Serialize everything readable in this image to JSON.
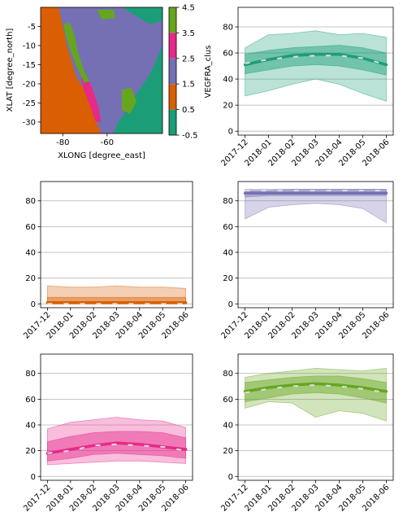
{
  "chart_data": [
    {
      "type": "heatmap",
      "xlabel": "XLONG [degree_east]",
      "ylabel": "XLAT [degree_north]",
      "xticks": [
        -80,
        -60
      ],
      "yticks": [
        -5,
        -10,
        -15,
        -20,
        -25,
        -30
      ],
      "xlim": [
        -90,
        -35
      ],
      "ylim": [
        -33,
        0
      ],
      "colorbar": {
        "label": "VEGFRA_clus",
        "ticks": [
          "-0.5",
          "0.5",
          "1.5",
          "2.5",
          "3.5",
          "4.5"
        ],
        "colors": [
          "#1b9e77",
          "#d95f02",
          "#7570b3",
          "#e7298a",
          "#66a61e"
        ]
      }
    },
    {
      "type": "line",
      "color": "#1b9e77",
      "categories": [
        "2017-12",
        "2018-01",
        "2018-02",
        "2018-03",
        "2018-04",
        "2018-05",
        "2018-06"
      ],
      "ylim": [
        -3,
        95
      ],
      "yticks": [
        0,
        20,
        40,
        60,
        80
      ],
      "grid": "y",
      "median": [
        51,
        55,
        58,
        59,
        59,
        56,
        51
      ],
      "mean": [
        52,
        55,
        57,
        58,
        58,
        56,
        51
      ],
      "p25": [
        44,
        47,
        50,
        51,
        50,
        47,
        43
      ],
      "p75": [
        59,
        62,
        64,
        65,
        66,
        64,
        60
      ],
      "min": [
        27,
        31,
        36,
        40,
        36,
        29,
        23
      ],
      "max": [
        64,
        74,
        75,
        77,
        74,
        75,
        72
      ]
    },
    {
      "type": "line",
      "color": "#d95f02",
      "categories": [
        "2017-12",
        "2018-01",
        "2018-02",
        "2018-03",
        "2018-04",
        "2018-05",
        "2018-06"
      ],
      "ylim": [
        -3,
        95
      ],
      "yticks": [
        0,
        20,
        40,
        60,
        80
      ],
      "grid": "y",
      "median": [
        1,
        1,
        1,
        1,
        1,
        1,
        1
      ],
      "mean": [
        0,
        0,
        0,
        0,
        0,
        0,
        0
      ],
      "p25": [
        0,
        0,
        0,
        0,
        0,
        0,
        0
      ],
      "p75": [
        5,
        5,
        5,
        5,
        5,
        5,
        5
      ],
      "min": [
        0,
        0,
        0,
        0,
        0,
        0,
        0
      ],
      "max": [
        14,
        13,
        13,
        14,
        13,
        13,
        12
      ]
    },
    {
      "type": "line",
      "color": "#7570b3",
      "categories": [
        "2017-12",
        "2018-01",
        "2018-02",
        "2018-03",
        "2018-04",
        "2018-05",
        "2018-06"
      ],
      "ylim": [
        -3,
        95
      ],
      "yticks": [
        0,
        20,
        40,
        60,
        80
      ],
      "grid": "y",
      "median": [
        86,
        86,
        86,
        86,
        86,
        86,
        86
      ],
      "mean": [
        88,
        88,
        88,
        88,
        88,
        88,
        88
      ],
      "p25": [
        83,
        84,
        84,
        84,
        84,
        84,
        84
      ],
      "p75": [
        88,
        88,
        89,
        89,
        89,
        89,
        89
      ],
      "min": [
        66,
        75,
        77,
        78,
        77,
        74,
        63
      ],
      "max": [
        89,
        89,
        89,
        89,
        89,
        89,
        89
      ]
    },
    {
      "type": "line",
      "color": "#e7298a",
      "categories": [
        "2017-12",
        "2018-01",
        "2018-02",
        "2018-03",
        "2018-04",
        "2018-05",
        "2018-06"
      ],
      "ylim": [
        -3,
        95
      ],
      "yticks": [
        0,
        20,
        40,
        60,
        80
      ],
      "grid": "y",
      "median": [
        18,
        21,
        24,
        26,
        25,
        23,
        21
      ],
      "mean": [
        18,
        20,
        24,
        25,
        24,
        23,
        20
      ],
      "p25": [
        12,
        14,
        17,
        18,
        17,
        16,
        14
      ],
      "p75": [
        27,
        31,
        34,
        35,
        35,
        34,
        30
      ],
      "min": [
        9,
        10,
        11,
        12,
        12,
        11,
        10
      ],
      "max": [
        37,
        42,
        44,
        46,
        44,
        43,
        38
      ]
    },
    {
      "type": "line",
      "color": "#66a61e",
      "categories": [
        "2017-12",
        "2018-01",
        "2018-02",
        "2018-03",
        "2018-04",
        "2018-05",
        "2018-06"
      ],
      "ylim": [
        -3,
        95
      ],
      "yticks": [
        0,
        20,
        40,
        60,
        80
      ],
      "grid": "y",
      "median": [
        66,
        69,
        71,
        72,
        71,
        69,
        66
      ],
      "mean": [
        65,
        68,
        70,
        71,
        70,
        68,
        65
      ],
      "p25": [
        58,
        61,
        64,
        65,
        64,
        61,
        57
      ],
      "p75": [
        73,
        75,
        77,
        78,
        78,
        76,
        73
      ],
      "min": [
        53,
        58,
        57,
        46,
        51,
        49,
        43
      ],
      "max": [
        77,
        80,
        82,
        84,
        83,
        82,
        84
      ]
    }
  ]
}
